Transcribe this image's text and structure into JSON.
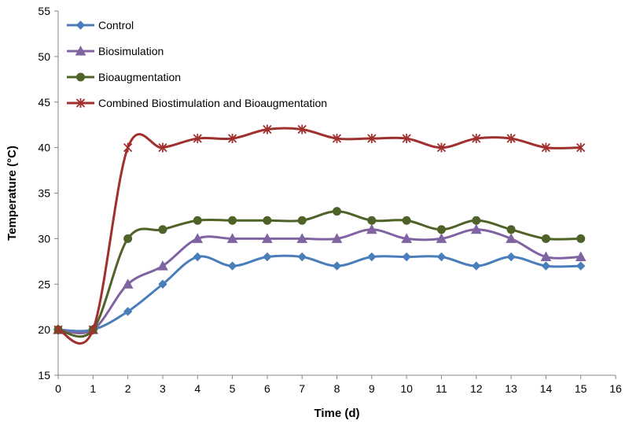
{
  "chart_data": {
    "type": "line",
    "title": "",
    "xlabel": "Time (d)",
    "ylabel": "Temperature (°C)",
    "xlim": [
      0,
      16
    ],
    "ylim": [
      15,
      55
    ],
    "xticks": [
      0,
      1,
      2,
      3,
      4,
      5,
      6,
      7,
      8,
      9,
      10,
      11,
      12,
      13,
      14,
      15,
      16
    ],
    "yticks": [
      15,
      20,
      25,
      30,
      35,
      40,
      45,
      50,
      55
    ],
    "grid": false,
    "legend_position": "top-left",
    "x": [
      0,
      1,
      2,
      3,
      4,
      5,
      6,
      7,
      8,
      9,
      10,
      11,
      12,
      13,
      14,
      15
    ],
    "series": [
      {
        "name": "Control",
        "color": "#4a7ebb",
        "marker": "diamond",
        "values": [
          20,
          20,
          22,
          25,
          28,
          27,
          28,
          28,
          27,
          28,
          28,
          28,
          27,
          28,
          27,
          27
        ]
      },
      {
        "name": "Biosimulation",
        "color": "#8064a2",
        "marker": "triangle",
        "values": [
          20,
          20,
          25,
          27,
          30,
          30,
          30,
          30,
          30,
          31,
          30,
          30,
          31,
          30,
          28,
          28
        ]
      },
      {
        "name": "Bioaugmentation",
        "color": "#4f6228",
        "marker": "circle",
        "values": [
          20,
          20,
          30,
          31,
          32,
          32,
          32,
          32,
          33,
          32,
          32,
          31,
          32,
          31,
          30,
          30
        ]
      },
      {
        "name": "Combined Biostimulation and Bioaugmentation",
        "color": "#a0302d",
        "marker": "star",
        "values": [
          20,
          20,
          40,
          40,
          41,
          41,
          42,
          42,
          41,
          41,
          41,
          40,
          41,
          41,
          40,
          40
        ]
      }
    ]
  }
}
